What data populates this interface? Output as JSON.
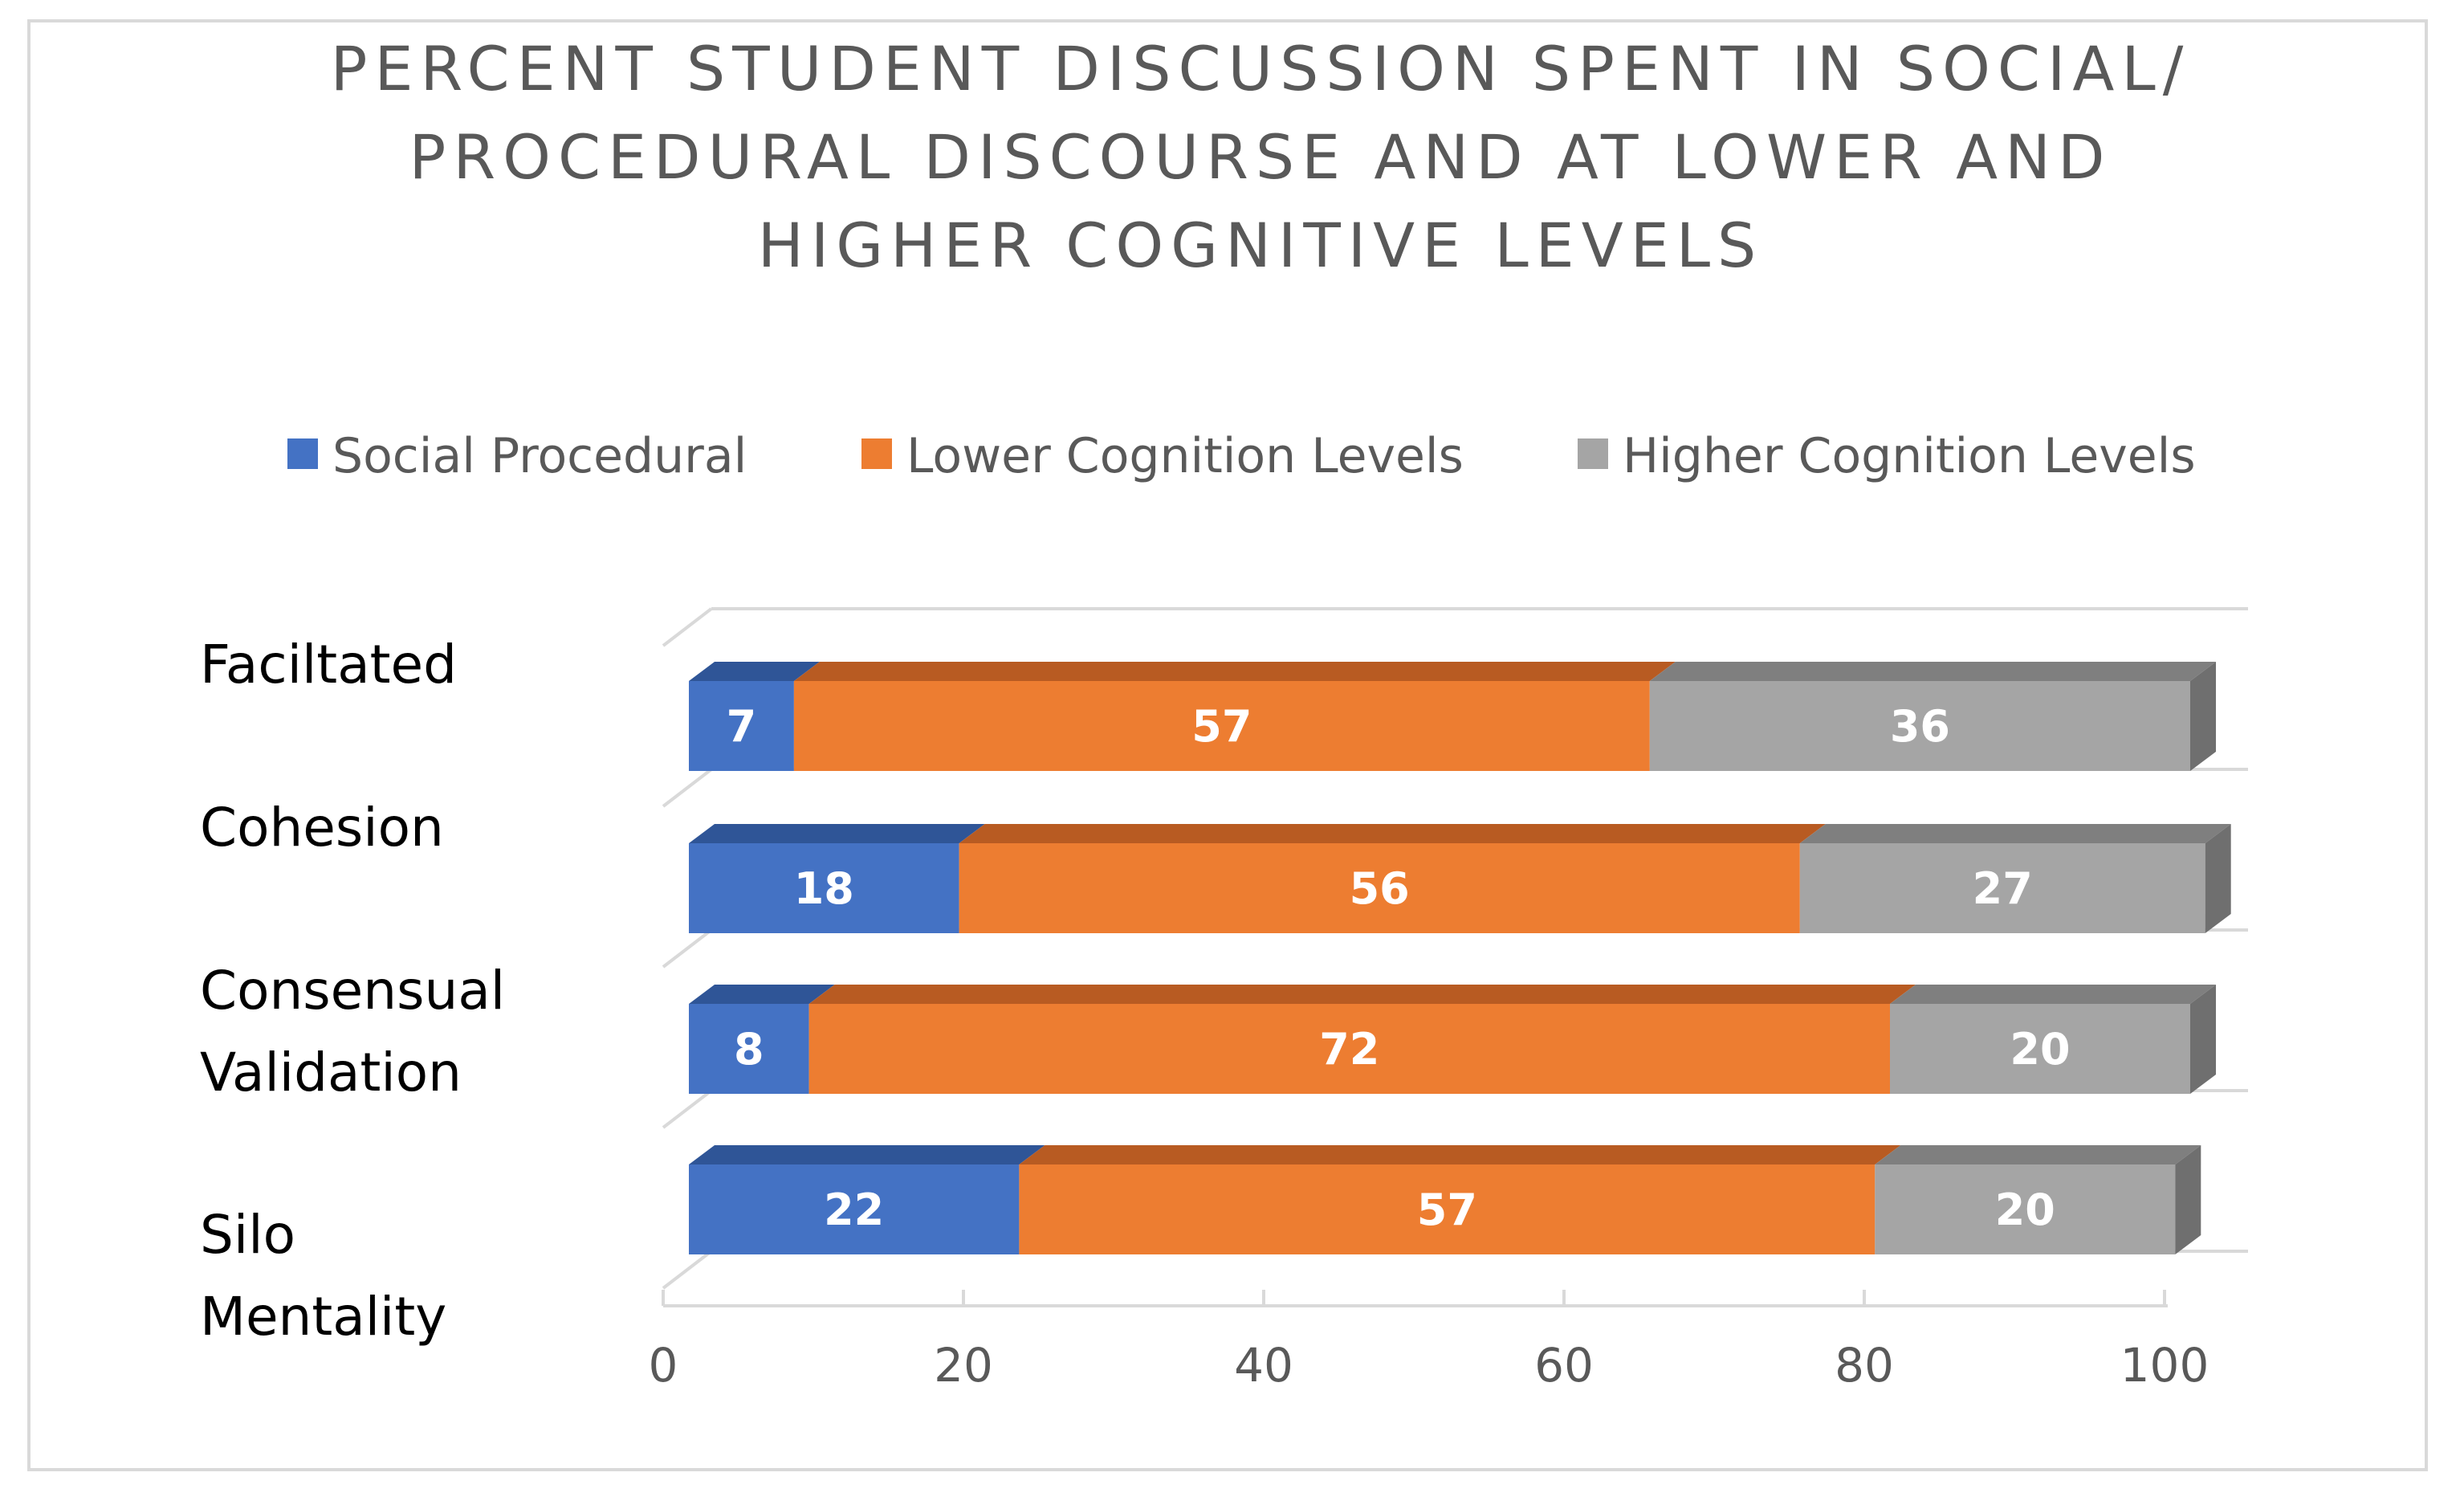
{
  "chart_data": {
    "type": "bar",
    "orientation": "horizontal",
    "stacked": true,
    "style": "3d",
    "title_lines": [
      "PERCENT STUDENT DISCUSSION SPENT IN SOCIAL/",
      "PROCEDURAL DISCOURSE AND AT LOWER AND",
      "HIGHER COGNITIVE LEVELS"
    ],
    "categories": [
      {
        "lines": [
          "Faciltated"
        ]
      },
      {
        "lines": [
          "Cohesion"
        ]
      },
      {
        "lines": [
          "Consensual",
          "Validation"
        ]
      },
      {
        "lines": [
          "Silo",
          "Mentality"
        ]
      }
    ],
    "series": [
      {
        "name": "Social Procedural",
        "color": "#4472c4",
        "top_color": "#2f5597",
        "side_color": "#2f5597",
        "values": [
          7,
          18,
          8,
          22
        ]
      },
      {
        "name": "Lower Cognition Levels",
        "color": "#ed7d31",
        "top_color": "#b85b22",
        "side_color": "#b85b22",
        "values": [
          57,
          56,
          72,
          57
        ]
      },
      {
        "name": "Higher Cognition Levels",
        "color": "#a5a5a5",
        "top_color": "#7f7f7f",
        "side_color": "#6f6f6f",
        "values": [
          36,
          27,
          20,
          20
        ]
      }
    ],
    "xlim": [
      0,
      100
    ],
    "x_ticks": [
      0,
      20,
      40,
      60,
      80,
      100
    ],
    "xlabel": "",
    "ylabel": "",
    "legend_position": "top",
    "grid": false
  }
}
